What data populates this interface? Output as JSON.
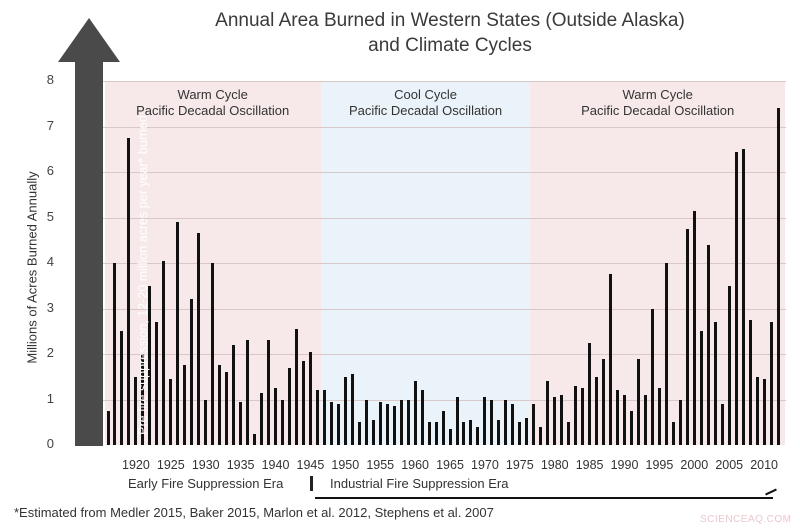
{
  "chart_data": {
    "type": "bar",
    "title": "Annual Area Burned in Western States (Outside Alaska) and Climate Cycles",
    "title_lines": [
      "Annual Area Burned in Western States (Outside Alaska)",
      "and Climate Cycles"
    ],
    "xlabel": "",
    "ylabel": "Millions of Acres Burned Annually",
    "ylim": [
      0,
      8
    ],
    "yticks": [
      "0",
      "1",
      "2",
      "3",
      "4",
      "5",
      "6",
      "7",
      "8"
    ],
    "xticks": [
      "1920",
      "1925",
      "1930",
      "1935",
      "1940",
      "1945",
      "1950",
      "1955",
      "1960",
      "1965",
      "1970",
      "1975",
      "1980",
      "1985",
      "1990",
      "1995",
      "2000",
      "2005",
      "2010"
    ],
    "grid": true,
    "x": [
      1916,
      1917,
      1918,
      1919,
      1920,
      1921,
      1922,
      1923,
      1924,
      1925,
      1926,
      1927,
      1928,
      1929,
      1930,
      1931,
      1932,
      1933,
      1934,
      1935,
      1936,
      1937,
      1938,
      1939,
      1940,
      1941,
      1942,
      1943,
      1944,
      1945,
      1946,
      1947,
      1948,
      1949,
      1950,
      1951,
      1952,
      1953,
      1954,
      1955,
      1956,
      1957,
      1958,
      1959,
      1960,
      1961,
      1962,
      1963,
      1964,
      1965,
      1966,
      1967,
      1968,
      1969,
      1970,
      1971,
      1972,
      1973,
      1974,
      1975,
      1976,
      1977,
      1978,
      1979,
      1980,
      1981,
      1982,
      1983,
      1984,
      1985,
      1986,
      1987,
      1988,
      1989,
      1990,
      1991,
      1992,
      1993,
      1994,
      1995,
      1996,
      1997,
      1998,
      1999,
      2000,
      2001,
      2002,
      2003,
      2004,
      2005,
      2006,
      2007,
      2008,
      2009,
      2010,
      2011,
      2012
    ],
    "values": [
      0.75,
      4.0,
      2.5,
      6.75,
      1.5,
      2.0,
      3.5,
      2.7,
      4.05,
      1.45,
      4.9,
      1.75,
      3.2,
      4.65,
      1.0,
      4.0,
      1.75,
      1.6,
      2.2,
      0.95,
      2.3,
      0.25,
      1.15,
      2.3,
      1.25,
      1.0,
      1.7,
      2.55,
      1.85,
      2.05,
      1.2,
      1.2,
      0.95,
      0.9,
      1.5,
      1.55,
      0.5,
      1.0,
      0.55,
      0.95,
      0.9,
      0.85,
      1.0,
      1.0,
      1.4,
      1.2,
      0.5,
      0.5,
      0.75,
      0.35,
      1.05,
      0.5,
      0.55,
      0.4,
      1.05,
      1.0,
      0.55,
      1.0,
      0.9,
      0.5,
      0.6,
      0.9,
      0.4,
      1.4,
      1.05,
      1.1,
      0.5,
      1.3,
      1.25,
      2.25,
      1.5,
      1.9,
      3.75,
      1.2,
      1.1,
      0.75,
      1.9,
      1.1,
      3.0,
      1.25,
      4.0,
      0.5,
      1.0,
      4.75,
      5.15,
      2.5,
      4.4,
      2.7,
      0.9,
      3.5,
      6.45,
      6.5,
      2.75,
      1.5,
      1.45,
      2.7,
      7.4
    ],
    "bands": [
      {
        "name": "Warm Cycle",
        "subtitle": "Pacific Decadal Oscillation",
        "start": 1915.5,
        "end": 1946.5,
        "color": "#f7e9e9"
      },
      {
        "name": "Cool Cycle",
        "subtitle": "Pacific Decadal Oscillation",
        "start": 1946.5,
        "end": 1976.5,
        "color": "#eaf3f9"
      },
      {
        "name": "Warm Cycle",
        "subtitle": "Pacific Decadal Oscillation",
        "start": 1976.5,
        "end": 2013,
        "color": "#f7e9e9"
      }
    ],
    "annotations": [
      "Pre fire suppression, 12-20 million acres per year* burned",
      "Early Fire Suppression Era",
      "Industrial Fire Suppression Era"
    ],
    "legend": null
  },
  "header": {
    "title_line1": "Annual Area Burned in Western States (Outside Alaska)",
    "title_line2": "and Climate Cycles"
  },
  "axis": {
    "ylabel": "Millions of Acres Burned Annually"
  },
  "bands": [
    {
      "line1": "Warm Cycle",
      "line2": "Pacific Decadal Oscillation"
    },
    {
      "line1": "Cool Cycle",
      "line2": "Pacific Decadal Oscillation"
    },
    {
      "line1": "Warm Cycle",
      "line2": "Pacific Decadal Oscillation"
    }
  ],
  "pre_suppression_arrow": {
    "text": "Pre fire suppression, 12-20 million acres per year* burned",
    "color": "#4a4a4a"
  },
  "eras": {
    "early": "Early Fire Suppression Era",
    "industrial": "Industrial Fire Suppression Era"
  },
  "footnote": "*Estimated from Medler 2015, Baker 2015, Marlon et al. 2012, Stephens et al. 2007",
  "watermark": "SCIENCEAQ.COM",
  "colors": {
    "warm_band": "#f7e9e9",
    "cool_band": "#eaf3f9",
    "bar": "#111111",
    "arrow": "#4a4a4a"
  }
}
